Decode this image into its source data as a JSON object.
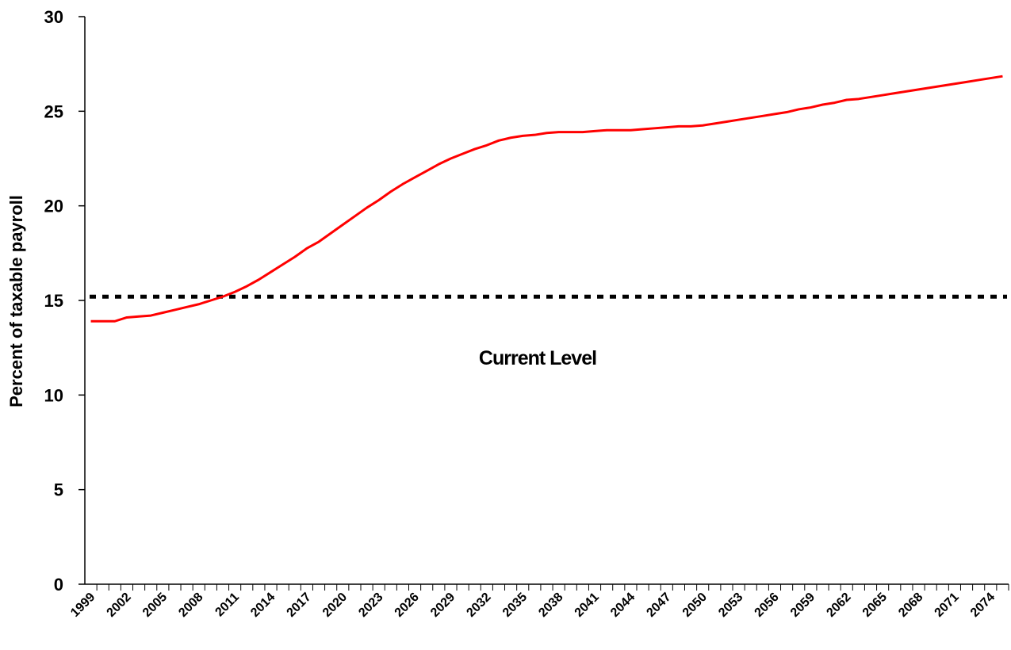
{
  "chart_data": {
    "type": "line",
    "y_label": "Percent of taxable payroll",
    "categories": [
      "1999",
      null,
      null,
      "2002",
      null,
      null,
      "2005",
      null,
      null,
      "2008",
      null,
      null,
      "2011",
      null,
      null,
      "2014",
      null,
      null,
      "2017",
      null,
      null,
      "2020",
      null,
      null,
      "2023",
      null,
      null,
      "2026",
      null,
      null,
      "2029",
      null,
      null,
      "2032",
      null,
      null,
      "2035",
      null,
      null,
      "2038",
      null,
      null,
      "2041",
      null,
      null,
      "2044",
      null,
      null,
      "2047",
      null,
      null,
      "2050",
      null,
      null,
      "2053",
      null,
      null,
      "2056",
      null,
      null,
      "2059",
      null,
      null,
      "2062",
      null,
      null,
      "2065",
      null,
      null,
      "2068",
      null,
      null,
      "2071",
      null,
      null,
      "2074",
      null
    ],
    "series": [
      {
        "color": "#ff0000",
        "values": [
          13.9,
          13.9,
          13.9,
          14.1,
          14.15,
          14.2,
          14.35,
          14.5,
          14.65,
          14.8,
          15.0,
          15.2,
          15.45,
          15.75,
          16.1,
          16.5,
          16.9,
          17.3,
          17.75,
          18.1,
          18.55,
          19.0,
          19.45,
          19.9,
          20.3,
          20.75,
          21.15,
          21.5,
          21.85,
          22.2,
          22.5,
          22.75,
          23.0,
          23.2,
          23.45,
          23.6,
          23.7,
          23.75,
          23.85,
          23.9,
          23.9,
          23.9,
          23.95,
          24.0,
          24.0,
          24.0,
          24.05,
          24.1,
          24.15,
          24.2,
          24.2,
          24.25,
          24.35,
          24.45,
          24.55,
          24.65,
          24.75,
          24.85,
          24.95,
          25.1,
          25.2,
          25.35,
          25.45,
          25.6,
          25.65,
          25.75,
          25.85,
          25.95,
          26.05,
          26.15,
          26.25,
          26.35,
          26.45,
          26.55,
          26.65,
          26.75,
          26.85
        ]
      }
    ],
    "reference_line": {
      "value": 15.2,
      "label": "Current Level",
      "color": "#000000"
    },
    "ylim": [
      0,
      30
    ],
    "yticks": [
      0,
      5,
      10,
      15,
      20,
      25,
      30
    ]
  }
}
